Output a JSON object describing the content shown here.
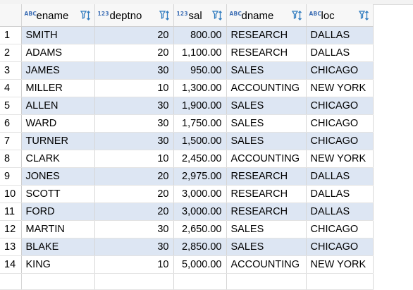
{
  "columns": [
    {
      "type_badge": "ABC",
      "name": "ename",
      "filter_icon": "filter-sort-icon"
    },
    {
      "type_badge": "123",
      "name": "deptno",
      "filter_icon": "filter-sort-icon"
    },
    {
      "type_badge": "123",
      "name": "sal",
      "filter_icon": "filter-sort-icon"
    },
    {
      "type_badge": "ABC",
      "name": "dname",
      "filter_icon": "filter-sort-icon"
    },
    {
      "type_badge": "ABC",
      "name": "loc",
      "filter_icon": "filter-sort-icon"
    }
  ],
  "rows": [
    {
      "n": "1",
      "ename": "SMITH",
      "deptno": "20",
      "sal": "800.00",
      "dname": "RESEARCH",
      "loc": "DALLAS"
    },
    {
      "n": "2",
      "ename": "ADAMS",
      "deptno": "20",
      "sal": "1,100.00",
      "dname": "RESEARCH",
      "loc": "DALLAS"
    },
    {
      "n": "3",
      "ename": "JAMES",
      "deptno": "30",
      "sal": "950.00",
      "dname": "SALES",
      "loc": "CHICAGO"
    },
    {
      "n": "4",
      "ename": "MILLER",
      "deptno": "10",
      "sal": "1,300.00",
      "dname": "ACCOUNTING",
      "loc": "NEW YORK"
    },
    {
      "n": "5",
      "ename": "ALLEN",
      "deptno": "30",
      "sal": "1,900.00",
      "dname": "SALES",
      "loc": "CHICAGO"
    },
    {
      "n": "6",
      "ename": "WARD",
      "deptno": "30",
      "sal": "1,750.00",
      "dname": "SALES",
      "loc": "CHICAGO"
    },
    {
      "n": "7",
      "ename": "TURNER",
      "deptno": "30",
      "sal": "1,500.00",
      "dname": "SALES",
      "loc": "CHICAGO"
    },
    {
      "n": "8",
      "ename": "CLARK",
      "deptno": "10",
      "sal": "2,450.00",
      "dname": "ACCOUNTING",
      "loc": "NEW YORK"
    },
    {
      "n": "9",
      "ename": "JONES",
      "deptno": "20",
      "sal": "2,975.00",
      "dname": "RESEARCH",
      "loc": "DALLAS"
    },
    {
      "n": "10",
      "ename": "SCOTT",
      "deptno": "20",
      "sal": "3,000.00",
      "dname": "RESEARCH",
      "loc": "DALLAS"
    },
    {
      "n": "11",
      "ename": "FORD",
      "deptno": "20",
      "sal": "3,000.00",
      "dname": "RESEARCH",
      "loc": "DALLAS"
    },
    {
      "n": "12",
      "ename": "MARTIN",
      "deptno": "30",
      "sal": "2,650.00",
      "dname": "SALES",
      "loc": "CHICAGO"
    },
    {
      "n": "13",
      "ename": "BLAKE",
      "deptno": "30",
      "sal": "2,850.00",
      "dname": "SALES",
      "loc": "CHICAGO"
    },
    {
      "n": "14",
      "ename": "KING",
      "deptno": "10",
      "sal": "5,000.00",
      "dname": "ACCOUNTING",
      "loc": "NEW YORK"
    }
  ],
  "colors": {
    "alt_row": "#dde6f3",
    "badge": "#3e6fb5",
    "filter": "#2f7bbf"
  }
}
